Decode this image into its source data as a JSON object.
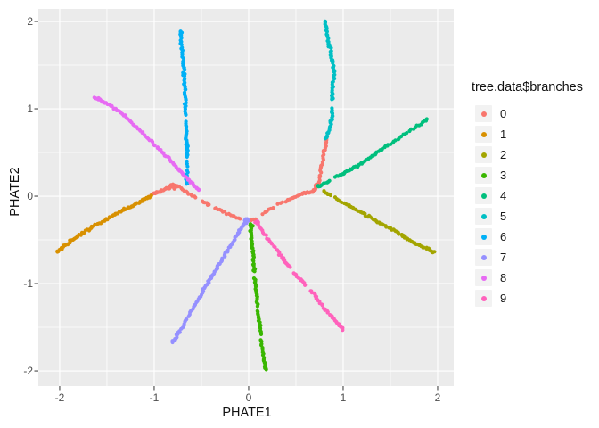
{
  "chart_data": {
    "type": "scatter",
    "title": "",
    "xlabel": "PHATE1",
    "ylabel": "PHATE2",
    "legend_title": "tree.data$branches",
    "legend_position": "right",
    "grid": true,
    "x_axis": {
      "tick_labels": [
        "-2",
        "-1",
        "0",
        "1",
        "2"
      ],
      "tick_values": [
        -2,
        -1,
        0,
        1,
        2
      ],
      "minor_values": [
        -1.5,
        -0.5,
        0.5,
        1.5
      ],
      "domain": [
        -2.226,
        2.17
      ]
    },
    "y_axis": {
      "tick_labels": [
        "-2",
        "-1",
        "0",
        "1",
        "2"
      ],
      "tick_values": [
        -2,
        -1,
        0,
        1,
        2
      ],
      "minor_values": [
        -1.5,
        -0.5,
        0.5,
        1.5
      ],
      "domain": [
        -2.173,
        2.143
      ]
    },
    "style": {
      "panel_bg": "#EBEBEB",
      "grid_color": "#FFFFFF",
      "tick_mark_color": "#333333",
      "tick_label_color": "#4D4D4D",
      "axis_title_color": "#111111",
      "legend_key_bg": "#F2F2F2",
      "point_radius": 2.1
    },
    "series": [
      {
        "label": "0",
        "color": "#F8766D",
        "n": 150,
        "path": [
          [
            -1.02,
            0.02
          ],
          [
            -0.86,
            0.09
          ],
          [
            -0.78,
            0.13
          ],
          [
            -0.55,
            -0.02
          ],
          [
            -0.3,
            -0.16
          ],
          [
            0.0,
            -0.28
          ],
          [
            0.3,
            -0.1
          ],
          [
            0.55,
            0.02
          ],
          [
            0.72,
            0.1
          ],
          [
            0.78,
            0.4
          ],
          [
            0.82,
            0.66
          ]
        ],
        "gaps": [
          [
            0.3,
            0.32
          ],
          [
            0.36,
            0.375
          ],
          [
            0.475,
            0.49
          ],
          [
            0.53,
            0.545
          ],
          [
            0.585,
            0.598
          ]
        ],
        "clusters": [
          {
            "x": -0.78,
            "y": 0.1,
            "n": 8,
            "spread": 2.2
          },
          {
            "x": 0.72,
            "y": 0.12,
            "n": 8,
            "spread": 2.2
          }
        ]
      },
      {
        "label": "1",
        "color": "#D89000",
        "n": 80,
        "path": [
          [
            -2.03,
            -0.64
          ],
          [
            -1.85,
            -0.49
          ],
          [
            -1.63,
            -0.34
          ],
          [
            -1.4,
            -0.2
          ],
          [
            -1.2,
            -0.09
          ],
          [
            -1.04,
            0.0
          ]
        ],
        "gaps": [],
        "clusters": []
      },
      {
        "label": "2",
        "color": "#A3A500",
        "n": 85,
        "path": [
          [
            0.79,
            0.05
          ],
          [
            1.05,
            -0.1
          ],
          [
            1.3,
            -0.25
          ],
          [
            1.55,
            -0.4
          ],
          [
            1.75,
            -0.53
          ],
          [
            1.96,
            -0.64
          ]
        ],
        "gaps": [
          [
            0.08,
            0.1
          ]
        ],
        "clusters": []
      },
      {
        "label": "3",
        "color": "#39B600",
        "n": 100,
        "path": [
          [
            0.02,
            -0.32
          ],
          [
            0.05,
            -0.7
          ],
          [
            0.08,
            -1.1
          ],
          [
            0.12,
            -1.5
          ],
          [
            0.18,
            -1.99
          ]
        ],
        "gaps": [
          [
            0.36,
            0.39
          ],
          [
            0.6,
            0.63
          ],
          [
            0.79,
            0.815
          ]
        ],
        "clusters": [
          {
            "x": 0.03,
            "y": -0.34,
            "n": 6,
            "spread": 2.0
          }
        ]
      },
      {
        "label": "4",
        "color": "#00BF7D",
        "n": 85,
        "path": [
          [
            0.73,
            0.11
          ],
          [
            0.95,
            0.23
          ],
          [
            1.2,
            0.38
          ],
          [
            1.5,
            0.6
          ],
          [
            1.89,
            0.88
          ]
        ],
        "gaps": [
          [
            0.16,
            0.22
          ]
        ],
        "clusters": []
      },
      {
        "label": "5",
        "color": "#00BFC4",
        "n": 85,
        "path": [
          [
            0.82,
            0.66
          ],
          [
            0.87,
            0.85
          ],
          [
            0.89,
            1.03
          ],
          [
            0.88,
            1.16
          ],
          [
            0.9,
            1.4
          ],
          [
            0.88,
            1.6
          ],
          [
            0.84,
            1.8
          ],
          [
            0.81,
            2.0
          ]
        ],
        "gaps": [
          [
            0.27,
            0.36
          ]
        ],
        "clusters": []
      },
      {
        "label": "6",
        "color": "#00B0F6",
        "n": 105,
        "path": [
          [
            -0.72,
            1.89
          ],
          [
            -0.69,
            1.5
          ],
          [
            -0.67,
            1.1
          ],
          [
            -0.66,
            0.7
          ],
          [
            -0.65,
            0.45
          ],
          [
            -0.655,
            0.14
          ]
        ],
        "gaps": [
          [
            0.49,
            0.51
          ],
          [
            0.8,
            0.835
          ],
          [
            0.87,
            0.89
          ]
        ],
        "clusters": []
      },
      {
        "label": "7",
        "color": "#9590FF",
        "n": 95,
        "path": [
          [
            -0.03,
            -0.28
          ],
          [
            -0.25,
            -0.67
          ],
          [
            -0.5,
            -1.12
          ],
          [
            -0.8,
            -1.67
          ]
        ],
        "gaps": [],
        "clusters": [
          {
            "x": -0.02,
            "y": -0.28,
            "n": 20,
            "spread": 3.0
          }
        ]
      },
      {
        "label": "8",
        "color": "#E76BF3",
        "n": 95,
        "path": [
          [
            -1.63,
            1.13
          ],
          [
            -1.41,
            1.0
          ],
          [
            -1.19,
            0.79
          ],
          [
            -0.93,
            0.52
          ],
          [
            -0.72,
            0.28
          ],
          [
            -0.53,
            0.07
          ]
        ],
        "gaps": [],
        "clusters": []
      },
      {
        "label": "9",
        "color": "#FF62BC",
        "n": 95,
        "path": [
          [
            0.07,
            -0.29
          ],
          [
            0.3,
            -0.62
          ],
          [
            0.45,
            -0.84
          ],
          [
            0.64,
            -1.06
          ],
          [
            0.82,
            -1.3
          ],
          [
            1.0,
            -1.53
          ]
        ],
        "gaps": [
          [
            0.38,
            0.43
          ],
          [
            0.57,
            0.61
          ]
        ],
        "clusters": [
          {
            "x": 0.09,
            "y": -0.3,
            "n": 7,
            "spread": 2.2
          }
        ]
      }
    ]
  }
}
